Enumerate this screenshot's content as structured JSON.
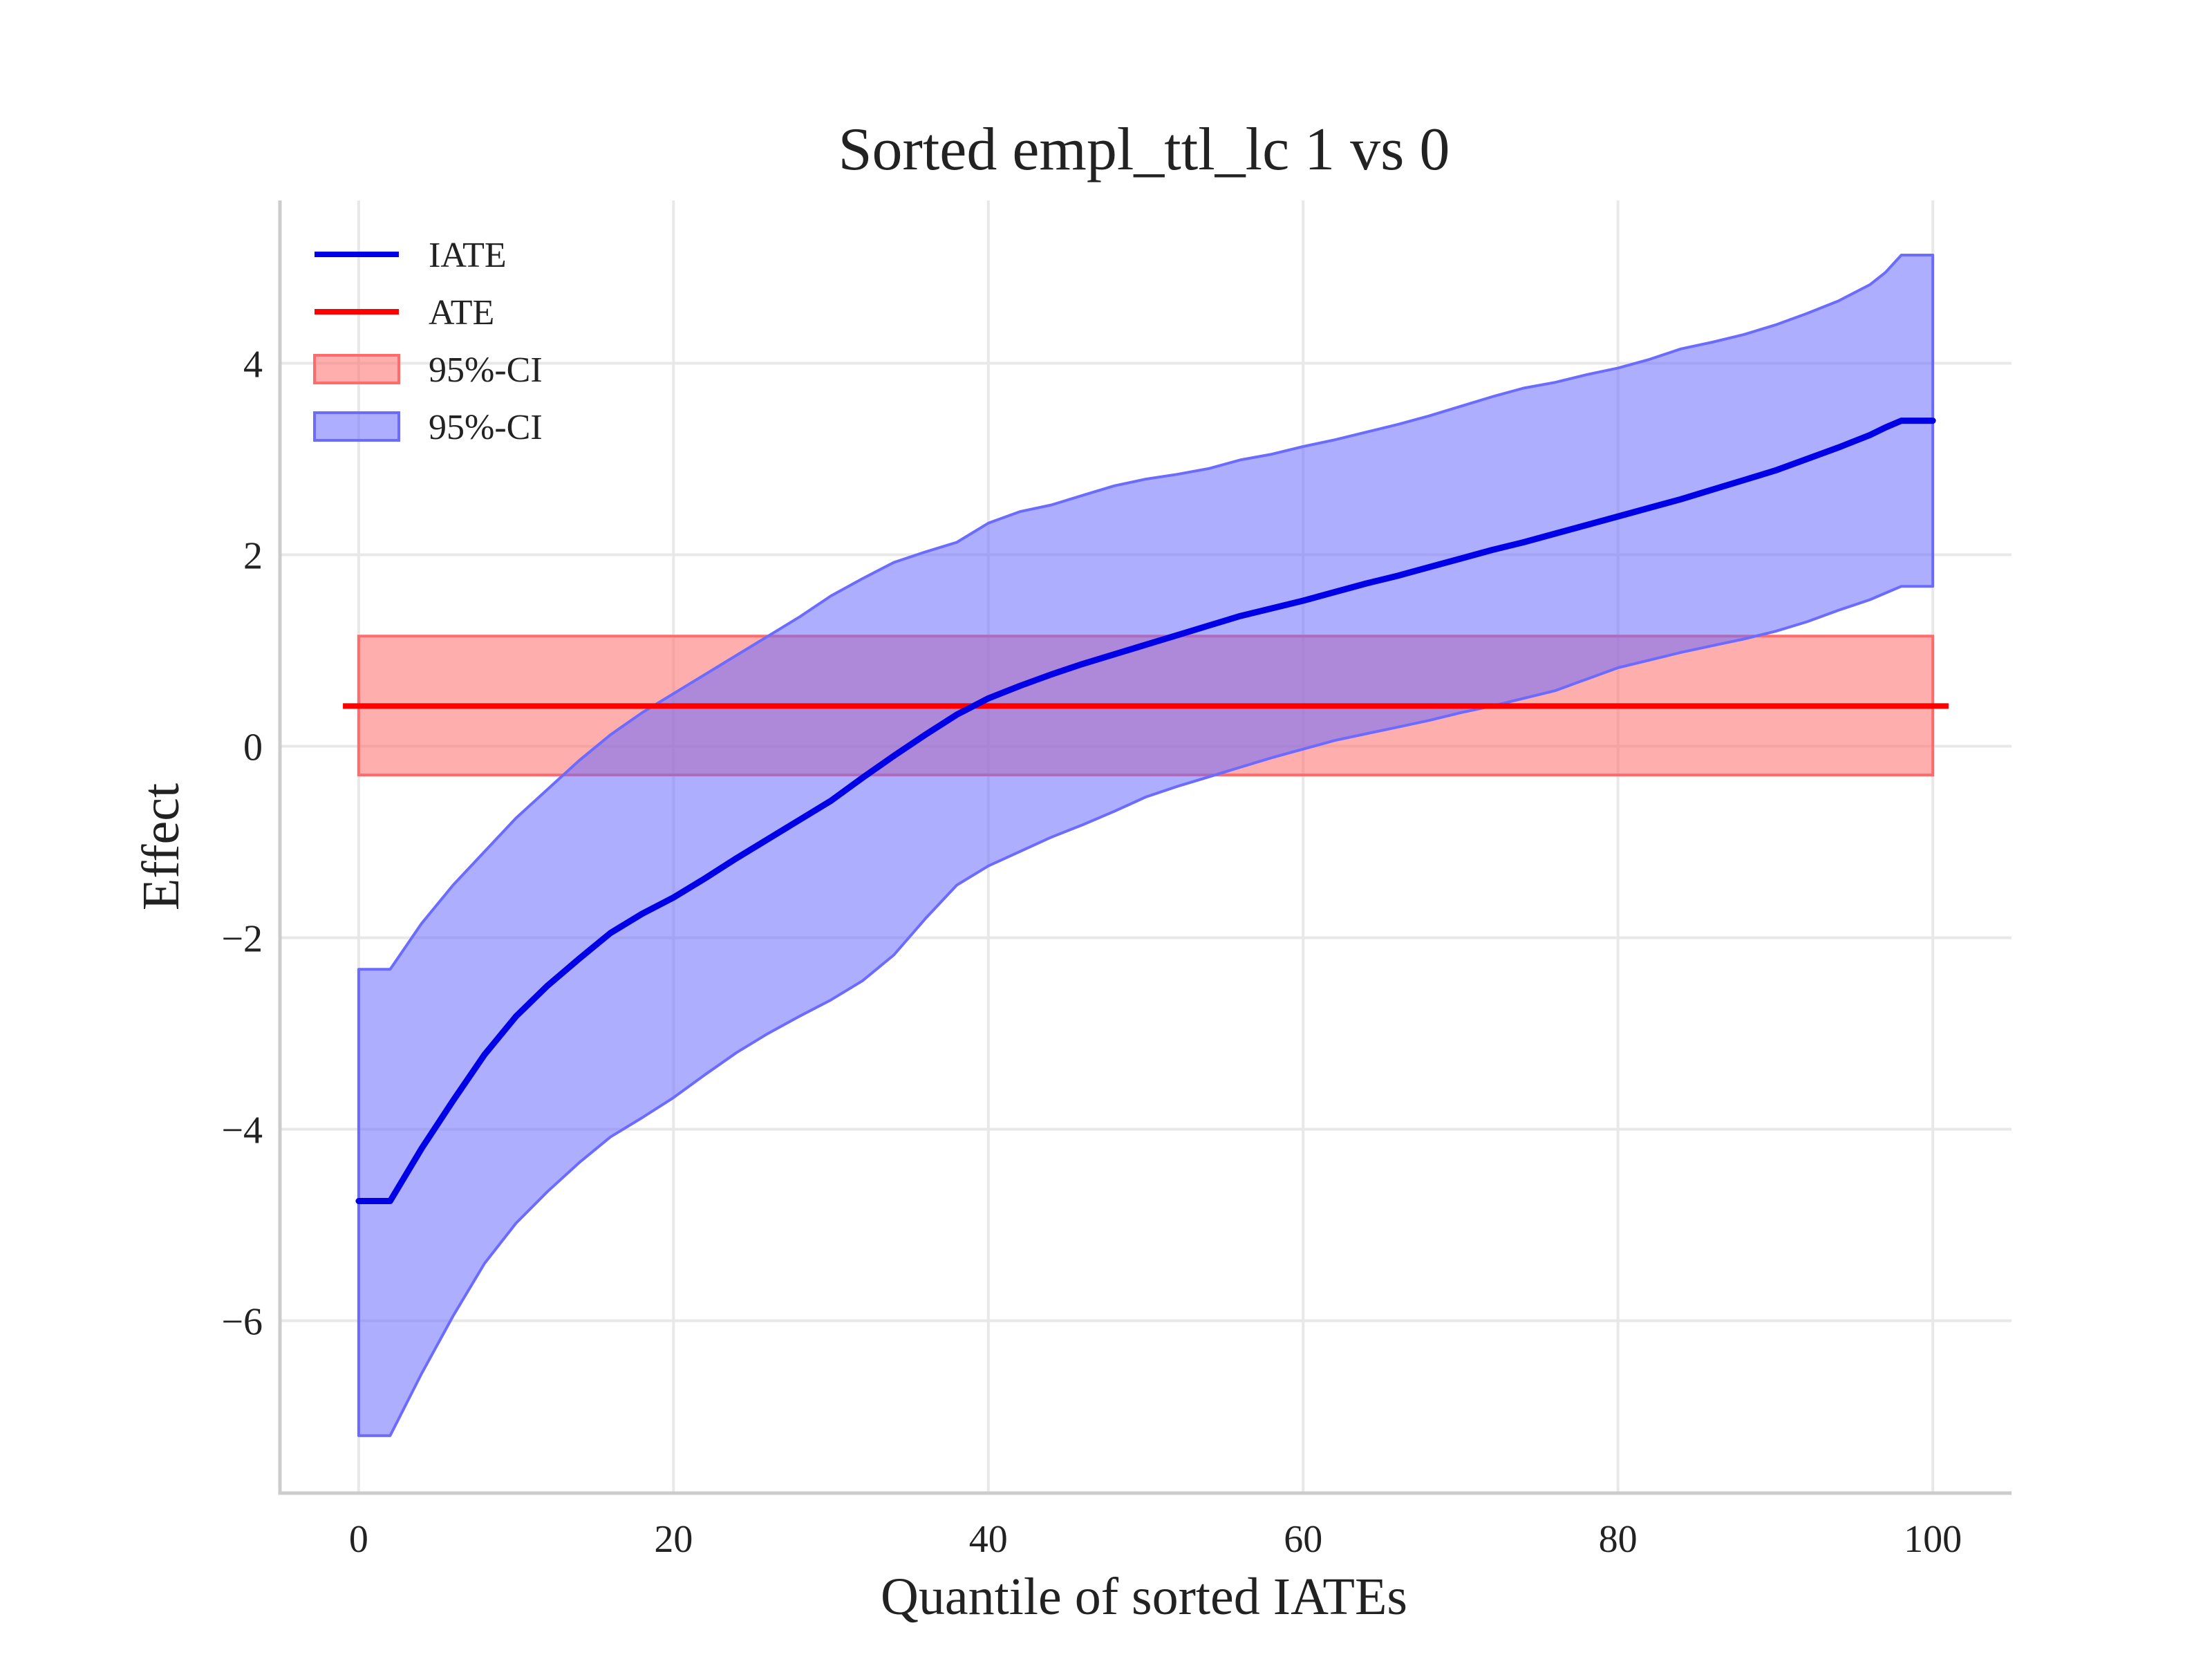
{
  "chart_data": {
    "type": "line",
    "title": "Sorted empl_ttl_lc 1 vs 0",
    "xlabel": "Quantile of sorted IATEs",
    "ylabel": "Effect",
    "xlim": [
      -5,
      105
    ],
    "ylim": [
      -7.8,
      5.7
    ],
    "xticks": [
      0,
      20,
      40,
      60,
      80,
      100
    ],
    "yticks": [
      -6,
      -4,
      -2,
      0,
      2,
      4
    ],
    "grid": true,
    "legend_position": "top-left",
    "legend": [
      "IATE",
      "ATE",
      "95%-CI",
      "95%-CI"
    ],
    "colors": {
      "iate": "#0000e6",
      "ate": "#ff0000",
      "ate_ci_fill": "#ff6b6b",
      "iate_ci_fill": "#6b6bff"
    },
    "ate": {
      "value": 0.42,
      "ci_lower": -0.3,
      "ci_upper": 1.15,
      "x_range": [
        -1,
        101
      ]
    },
    "iate": {
      "x": [
        0,
        2,
        4,
        6,
        8,
        10,
        12,
        14,
        16,
        18,
        20,
        22,
        24,
        26,
        28,
        30,
        32,
        34,
        36,
        38,
        40,
        42,
        44,
        46,
        48,
        50,
        52,
        54,
        56,
        58,
        60,
        62,
        64,
        66,
        68,
        70,
        72,
        74,
        76,
        78,
        80,
        82,
        84,
        86,
        88,
        90,
        92,
        94,
        96,
        97,
        98,
        100
      ],
      "y": [
        -4.75,
        -4.75,
        -4.2,
        -3.7,
        -3.22,
        -2.82,
        -2.5,
        -2.22,
        -1.95,
        -1.75,
        -1.58,
        -1.38,
        -1.17,
        -0.97,
        -0.77,
        -0.57,
        -0.33,
        -0.1,
        0.12,
        0.33,
        0.5,
        0.63,
        0.75,
        0.86,
        0.96,
        1.06,
        1.16,
        1.26,
        1.36,
        1.44,
        1.52,
        1.61,
        1.7,
        1.78,
        1.87,
        1.96,
        2.05,
        2.13,
        2.22,
        2.31,
        2.4,
        2.49,
        2.58,
        2.68,
        2.78,
        2.88,
        3.0,
        3.12,
        3.25,
        3.33,
        3.4,
        3.4
      ],
      "ci_lower": [
        -7.2,
        -7.2,
        -6.55,
        -5.95,
        -5.4,
        -4.98,
        -4.65,
        -4.35,
        -4.08,
        -3.88,
        -3.67,
        -3.43,
        -3.2,
        -3.0,
        -2.82,
        -2.65,
        -2.45,
        -2.18,
        -1.8,
        -1.45,
        -1.25,
        -1.1,
        -0.95,
        -0.82,
        -0.68,
        -0.53,
        -0.42,
        -0.32,
        -0.22,
        -0.12,
        -0.03,
        0.06,
        0.13,
        0.2,
        0.27,
        0.35,
        0.42,
        0.5,
        0.58,
        0.7,
        0.82,
        0.9,
        0.98,
        1.05,
        1.12,
        1.2,
        1.3,
        1.42,
        1.53,
        1.6,
        1.67,
        1.67
      ],
      "ci_upper": [
        -2.33,
        -2.33,
        -1.85,
        -1.45,
        -1.1,
        -0.75,
        -0.45,
        -0.15,
        0.12,
        0.35,
        0.55,
        0.75,
        0.95,
        1.15,
        1.35,
        1.57,
        1.75,
        1.92,
        2.03,
        2.13,
        2.33,
        2.45,
        2.52,
        2.62,
        2.72,
        2.79,
        2.84,
        2.9,
        2.99,
        3.05,
        3.13,
        3.2,
        3.28,
        3.36,
        3.45,
        3.55,
        3.65,
        3.74,
        3.8,
        3.88,
        3.95,
        4.04,
        4.15,
        4.22,
        4.3,
        4.4,
        4.52,
        4.65,
        4.82,
        4.95,
        5.13,
        5.13
      ]
    }
  }
}
